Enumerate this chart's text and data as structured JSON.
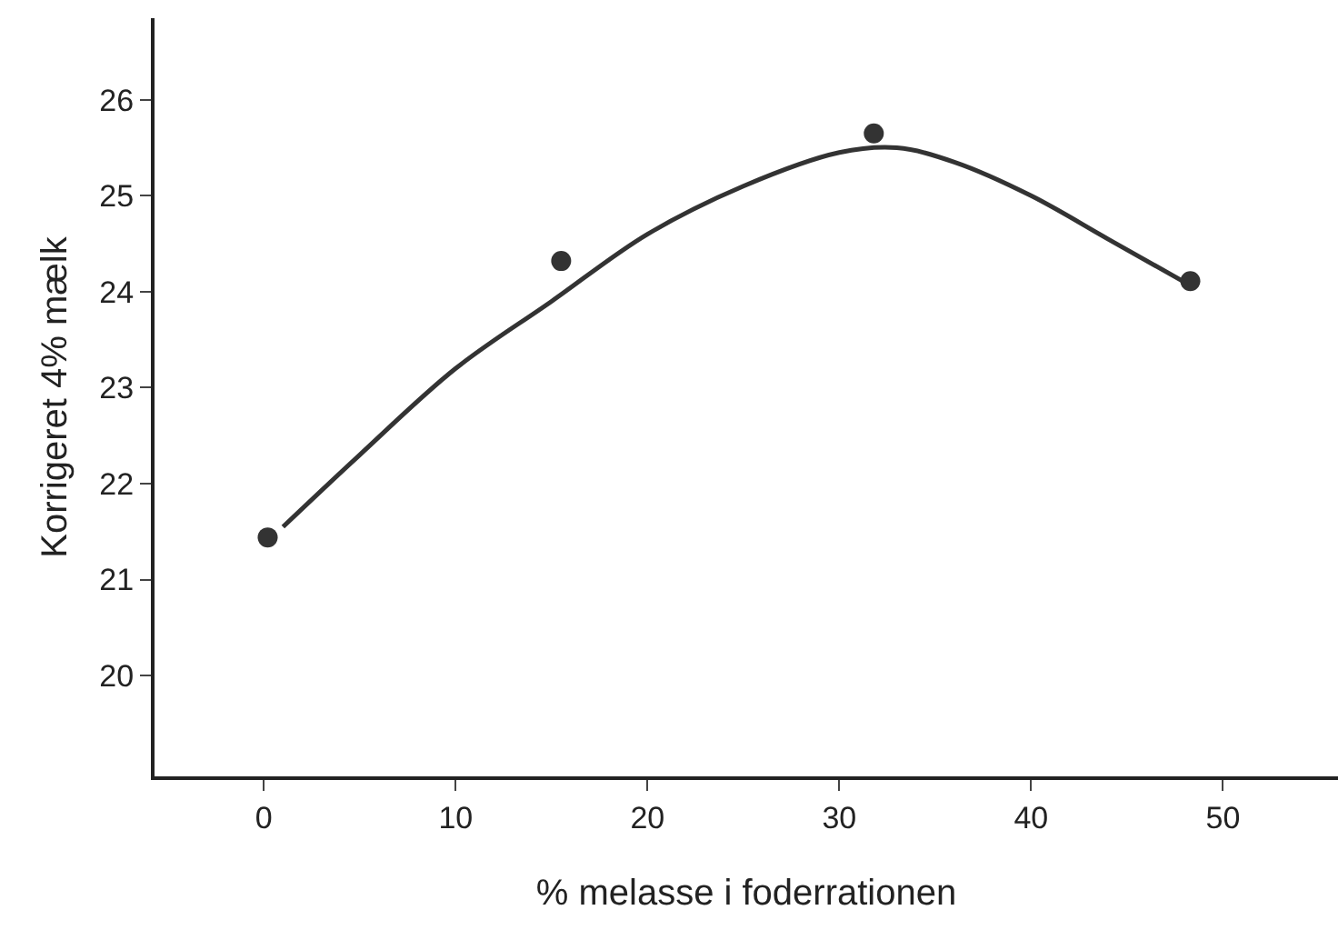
{
  "chart_data": {
    "type": "scatter",
    "xlabel": "% melasse i foderrationen",
    "ylabel": "Korrigeret 4% mælk",
    "xlim": [
      -5.7,
      56
    ],
    "xticks": [
      0,
      10,
      20,
      30,
      40,
      50
    ],
    "ylim": [
      18.95,
      26.85
    ],
    "yticks": [
      20,
      21,
      22,
      23,
      24,
      25,
      26
    ],
    "series": [
      {
        "type": "scatter",
        "marker": "circle",
        "color": "#333333",
        "x": [
          0.2,
          15.5,
          31.8,
          48.3
        ],
        "values": [
          21.44,
          24.32,
          25.65,
          24.11
        ]
      },
      {
        "type": "line",
        "marker": "none",
        "line_style": "solid",
        "color": "#333333",
        "x": [
          1,
          5,
          10,
          15,
          20,
          25,
          30,
          33,
          36,
          40,
          44,
          48
        ],
        "values": [
          21.55,
          22.3,
          23.2,
          23.9,
          24.6,
          25.1,
          25.45,
          25.5,
          25.35,
          25.0,
          24.55,
          24.1
        ]
      }
    ]
  }
}
